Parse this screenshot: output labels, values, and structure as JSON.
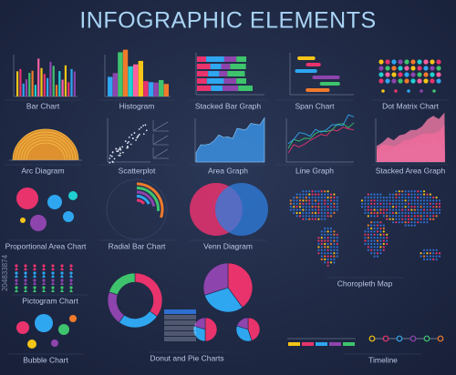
{
  "title": "INFOGRAPHIC ELEMENTS",
  "watermark_id": "204833874",
  "panels": [
    {
      "label": "Bar Chart"
    },
    {
      "label": "Histogram"
    },
    {
      "label": "Stacked Bar Graph"
    },
    {
      "label": "Span Chart"
    },
    {
      "label": "Dot Matrix Chart"
    },
    {
      "label": "Arc Diagram"
    },
    {
      "label": "Scatterplot"
    },
    {
      "label": "Area Graph"
    },
    {
      "label": "Line Graph"
    },
    {
      "label": "Stacked Area Graph"
    },
    {
      "label": "Proportional Area Chart"
    },
    {
      "label": "Radial Bar Chart"
    },
    {
      "label": "Venn Diagram"
    },
    {
      "label": "Choropleth Map"
    },
    {
      "label": "Pictogram Chart"
    },
    {
      "label": "Donut and Pie Charts"
    },
    {
      "label": "Bubble Chart"
    },
    {
      "label": "Timeline"
    }
  ]
}
